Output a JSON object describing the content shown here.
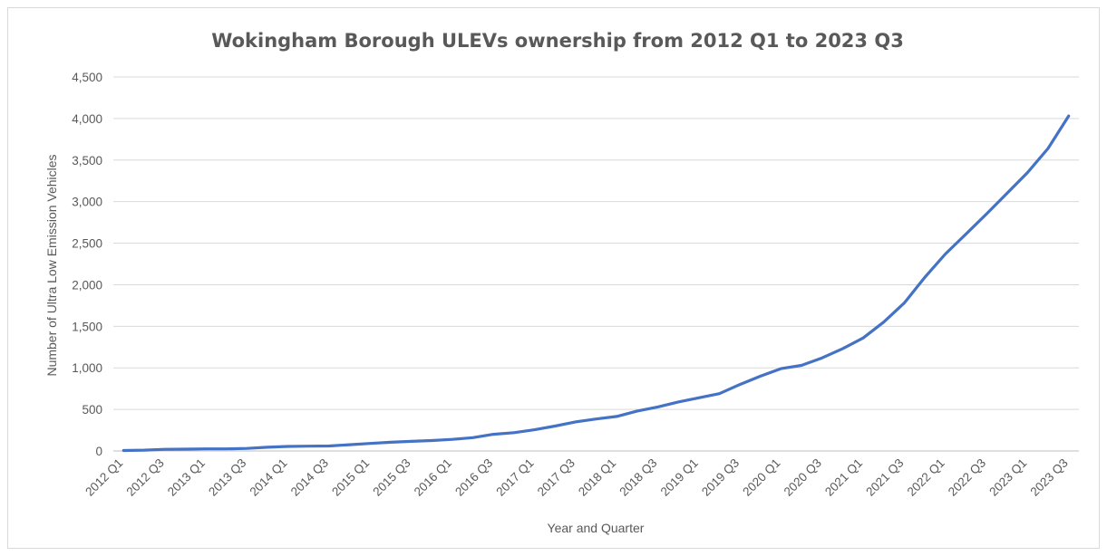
{
  "chart_data": {
    "type": "line",
    "title": "Wokingham Borough ULEVs ownership from 2012 Q1 to 2023 Q3",
    "xlabel": "Year and Quarter",
    "ylabel": "Number of Ultra Low Emission Vehicles",
    "ylim": [
      0,
      4500
    ],
    "ytick_step": 500,
    "ytick_labels": [
      "0",
      "500",
      "1,000",
      "1,500",
      "2,000",
      "2,500",
      "3,000",
      "3,500",
      "4,000",
      "4,500"
    ],
    "grid": true,
    "legend": "none",
    "x": [
      "2012 Q1",
      "2012 Q2",
      "2012 Q3",
      "2012 Q4",
      "2013 Q1",
      "2013 Q2",
      "2013 Q3",
      "2013 Q4",
      "2014 Q1",
      "2014 Q2",
      "2014 Q3",
      "2014 Q4",
      "2015 Q1",
      "2015 Q2",
      "2015 Q3",
      "2015 Q4",
      "2016 Q1",
      "2016 Q2",
      "2016 Q3",
      "2016 Q4",
      "2017 Q1",
      "2017 Q2",
      "2017 Q3",
      "2017 Q4",
      "2018 Q1",
      "2018 Q2",
      "2018 Q3",
      "2018 Q4",
      "2019 Q1",
      "2019 Q2",
      "2019 Q3",
      "2019 Q4",
      "2020 Q1",
      "2020 Q2",
      "2020 Q3",
      "2020 Q4",
      "2021 Q1",
      "2021 Q2",
      "2021 Q3",
      "2021 Q4",
      "2022 Q1",
      "2022 Q2",
      "2022 Q3",
      "2022 Q4",
      "2023 Q1",
      "2023 Q2",
      "2023 Q3"
    ],
    "x_tick_labels": [
      "2012 Q1",
      "2012 Q3",
      "2013 Q1",
      "2013 Q3",
      "2014 Q1",
      "2014 Q3",
      "2015 Q1",
      "2015 Q3",
      "2016 Q1",
      "2016 Q3",
      "2017 Q1",
      "2017 Q3",
      "2018 Q1",
      "2018 Q3",
      "2019 Q1",
      "2019 Q3",
      "2020 Q1",
      "2020 Q3",
      "2021 Q1",
      "2021 Q3",
      "2022 Q1",
      "2022 Q3",
      "2023 Q1",
      "2023 Q3"
    ],
    "series": [
      {
        "color": "#4472c4",
        "values": [
          5,
          10,
          20,
          22,
          25,
          25,
          30,
          45,
          55,
          58,
          60,
          75,
          90,
          105,
          115,
          125,
          140,
          160,
          200,
          220,
          255,
          300,
          350,
          385,
          415,
          480,
          530,
          590,
          640,
          690,
          800,
          900,
          990,
          1030,
          1120,
          1230,
          1360,
          1550,
          1780,
          2090,
          2370,
          2610,
          2850,
          3100,
          3350,
          3640,
          4030
        ]
      }
    ]
  }
}
